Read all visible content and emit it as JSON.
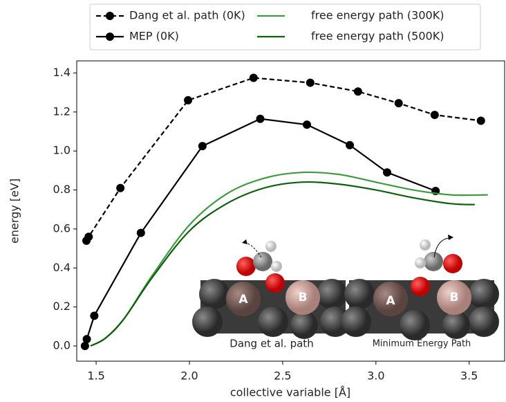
{
  "chart_data": {
    "type": "line",
    "xlabel": "collective variable [Å]",
    "ylabel": "energy [eV]",
    "xlim": [
      1.396,
      3.69
    ],
    "ylim": [
      -0.078,
      1.462
    ],
    "xticks": [
      1.5,
      {
        "value": 2,
        "label": "2.0"
      },
      2.5,
      {
        "value": 3,
        "label": "3.0"
      },
      3.5
    ],
    "yticks": [
      {
        "value": 0,
        "label": "0.0"
      },
      0.2,
      0.4,
      0.6,
      0.8,
      {
        "value": 1,
        "label": "1.0"
      },
      1.2,
      1.4
    ],
    "legend": "top",
    "series": [
      {
        "name": "Dang et al. path (0K)",
        "color": "#000000",
        "linestyle": "dashed",
        "marker": "circle",
        "x": [
          1.448,
          1.46,
          1.63,
          1.993,
          2.344,
          2.648,
          2.904,
          3.122,
          3.315,
          3.563
        ],
        "values": [
          0.54,
          0.56,
          0.81,
          1.26,
          1.375,
          1.35,
          1.305,
          1.245,
          1.185,
          1.155
        ]
      },
      {
        "name": "MEP (0K)",
        "color": "#000000",
        "linestyle": "solid",
        "marker": "circle",
        "x": [
          1.44,
          1.45,
          1.49,
          1.74,
          2.07,
          2.38,
          2.63,
          2.86,
          3.06,
          3.32
        ],
        "values": [
          0.0,
          0.035,
          0.155,
          0.58,
          1.025,
          1.165,
          1.135,
          1.03,
          0.89,
          0.795
        ]
      },
      {
        "name": "free energy path (300K)",
        "color": "#3c9b3c",
        "linestyle": "solid",
        "marker": "none",
        "x": [
          1.47,
          1.55,
          1.65,
          1.8,
          2.0,
          2.2,
          2.4,
          2.6,
          2.8,
          3.0,
          3.2,
          3.4,
          3.6
        ],
        "values": [
          0.0,
          0.04,
          0.14,
          0.36,
          0.62,
          0.78,
          0.86,
          0.89,
          0.88,
          0.84,
          0.8,
          0.775,
          0.775
        ]
      },
      {
        "name": "free energy path (500K)",
        "color": "#0b600b",
        "linestyle": "solid",
        "marker": "none",
        "x": [
          1.47,
          1.55,
          1.65,
          1.8,
          2.0,
          2.2,
          2.4,
          2.6,
          2.8,
          3.0,
          3.2,
          3.4,
          3.53
        ],
        "values": [
          0.0,
          0.04,
          0.14,
          0.35,
          0.59,
          0.73,
          0.81,
          0.84,
          0.83,
          0.8,
          0.76,
          0.73,
          0.725
        ]
      }
    ],
    "inset": {
      "left_caption": "Dang et al. path",
      "right_caption": "Minimum Energy Path",
      "site_a": "A",
      "site_b": "B"
    }
  }
}
